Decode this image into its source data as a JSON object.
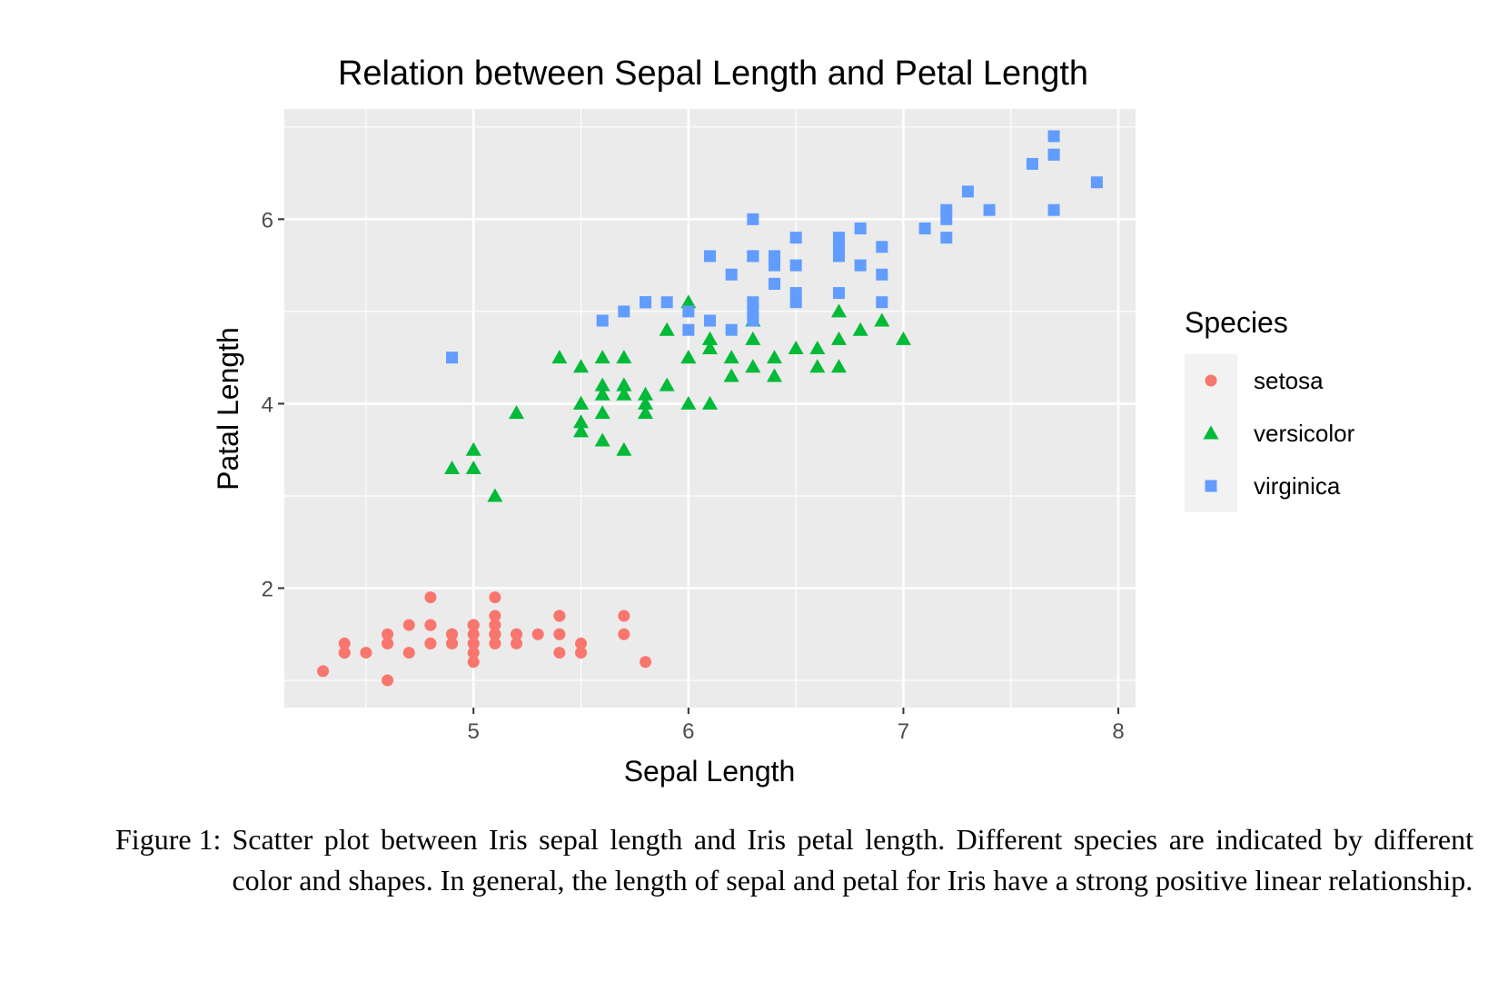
{
  "chart_data": {
    "type": "scatter",
    "title": "Relation between Sepal Length and Petal Length",
    "xlabel": "Sepal Length",
    "ylabel": "Patal Length",
    "xlim": [
      4.12,
      8.08
    ],
    "ylim": [
      0.705,
      7.195
    ],
    "x_ticks": [
      5,
      6,
      7,
      8
    ],
    "y_ticks": [
      2,
      4,
      6
    ],
    "grid": true,
    "legend_title": "Species",
    "legend_position": "right",
    "series": [
      {
        "name": "setosa",
        "color": "#F8766D",
        "marker": "circle",
        "points": [
          [
            5.1,
            1.4
          ],
          [
            4.9,
            1.4
          ],
          [
            4.7,
            1.3
          ],
          [
            4.6,
            1.5
          ],
          [
            5.0,
            1.4
          ],
          [
            5.4,
            1.7
          ],
          [
            4.6,
            1.4
          ],
          [
            5.0,
            1.5
          ],
          [
            4.4,
            1.4
          ],
          [
            4.9,
            1.5
          ],
          [
            5.4,
            1.5
          ],
          [
            4.8,
            1.6
          ],
          [
            4.8,
            1.4
          ],
          [
            4.3,
            1.1
          ],
          [
            5.8,
            1.2
          ],
          [
            5.7,
            1.5
          ],
          [
            5.4,
            1.3
          ],
          [
            5.1,
            1.4
          ],
          [
            5.7,
            1.7
          ],
          [
            5.1,
            1.5
          ],
          [
            5.4,
            1.7
          ],
          [
            5.1,
            1.5
          ],
          [
            4.6,
            1.0
          ],
          [
            5.1,
            1.7
          ],
          [
            4.8,
            1.9
          ],
          [
            5.0,
            1.6
          ],
          [
            5.0,
            1.6
          ],
          [
            5.2,
            1.5
          ],
          [
            5.2,
            1.4
          ],
          [
            4.7,
            1.6
          ],
          [
            4.8,
            1.6
          ],
          [
            5.4,
            1.5
          ],
          [
            5.2,
            1.5
          ],
          [
            5.5,
            1.4
          ],
          [
            4.9,
            1.5
          ],
          [
            5.0,
            1.2
          ],
          [
            5.5,
            1.3
          ],
          [
            4.9,
            1.4
          ],
          [
            4.4,
            1.3
          ],
          [
            5.1,
            1.5
          ],
          [
            5.0,
            1.3
          ],
          [
            4.5,
            1.3
          ],
          [
            4.4,
            1.3
          ],
          [
            5.0,
            1.6
          ],
          [
            5.1,
            1.9
          ],
          [
            4.8,
            1.4
          ],
          [
            5.1,
            1.6
          ],
          [
            4.6,
            1.4
          ],
          [
            5.3,
            1.5
          ],
          [
            5.0,
            1.4
          ]
        ]
      },
      {
        "name": "versicolor",
        "color": "#00BA38",
        "marker": "triangle",
        "points": [
          [
            7.0,
            4.7
          ],
          [
            6.4,
            4.5
          ],
          [
            6.9,
            4.9
          ],
          [
            5.5,
            4.0
          ],
          [
            6.5,
            4.6
          ],
          [
            5.7,
            4.5
          ],
          [
            6.3,
            4.7
          ],
          [
            4.9,
            3.3
          ],
          [
            6.6,
            4.6
          ],
          [
            5.2,
            3.9
          ],
          [
            5.0,
            3.5
          ],
          [
            5.9,
            4.2
          ],
          [
            6.0,
            4.0
          ],
          [
            6.1,
            4.7
          ],
          [
            5.6,
            3.6
          ],
          [
            6.7,
            4.4
          ],
          [
            5.6,
            4.5
          ],
          [
            5.8,
            4.1
          ],
          [
            6.2,
            4.5
          ],
          [
            5.6,
            3.9
          ],
          [
            5.9,
            4.8
          ],
          [
            6.1,
            4.0
          ],
          [
            6.3,
            4.9
          ],
          [
            6.1,
            4.7
          ],
          [
            6.4,
            4.3
          ],
          [
            6.6,
            4.4
          ],
          [
            6.8,
            4.8
          ],
          [
            6.7,
            5.0
          ],
          [
            6.0,
            4.5
          ],
          [
            5.7,
            3.5
          ],
          [
            5.5,
            3.8
          ],
          [
            5.5,
            3.7
          ],
          [
            5.8,
            3.9
          ],
          [
            6.0,
            5.1
          ],
          [
            5.4,
            4.5
          ],
          [
            6.0,
            4.5
          ],
          [
            6.7,
            4.7
          ],
          [
            6.3,
            4.4
          ],
          [
            5.6,
            4.1
          ],
          [
            5.5,
            4.0
          ],
          [
            5.5,
            4.4
          ],
          [
            6.1,
            4.6
          ],
          [
            5.8,
            4.0
          ],
          [
            5.0,
            3.3
          ],
          [
            5.6,
            4.2
          ],
          [
            5.7,
            4.2
          ],
          [
            5.7,
            4.2
          ],
          [
            6.2,
            4.3
          ],
          [
            5.1,
            3.0
          ],
          [
            5.7,
            4.1
          ]
        ]
      },
      {
        "name": "virginica",
        "color": "#619CFF",
        "marker": "square",
        "points": [
          [
            6.3,
            6.0
          ],
          [
            5.8,
            5.1
          ],
          [
            7.1,
            5.9
          ],
          [
            6.3,
            5.6
          ],
          [
            6.5,
            5.8
          ],
          [
            7.6,
            6.6
          ],
          [
            4.9,
            4.5
          ],
          [
            7.3,
            6.3
          ],
          [
            6.7,
            5.8
          ],
          [
            7.2,
            6.1
          ],
          [
            6.5,
            5.1
          ],
          [
            6.4,
            5.3
          ],
          [
            6.8,
            5.5
          ],
          [
            5.7,
            5.0
          ],
          [
            5.8,
            5.1
          ],
          [
            6.4,
            5.3
          ],
          [
            6.5,
            5.5
          ],
          [
            7.7,
            6.7
          ],
          [
            7.7,
            6.9
          ],
          [
            6.0,
            5.0
          ],
          [
            6.9,
            5.7
          ],
          [
            5.6,
            4.9
          ],
          [
            7.7,
            6.7
          ],
          [
            6.3,
            4.9
          ],
          [
            6.7,
            5.7
          ],
          [
            7.2,
            6.0
          ],
          [
            6.2,
            4.8
          ],
          [
            6.1,
            4.9
          ],
          [
            6.4,
            5.6
          ],
          [
            7.2,
            5.8
          ],
          [
            7.4,
            6.1
          ],
          [
            7.9,
            6.4
          ],
          [
            6.4,
            5.6
          ],
          [
            6.3,
            5.1
          ],
          [
            6.1,
            5.6
          ],
          [
            7.7,
            6.1
          ],
          [
            6.3,
            5.6
          ],
          [
            6.4,
            5.5
          ],
          [
            6.0,
            4.8
          ],
          [
            6.9,
            5.4
          ],
          [
            6.7,
            5.6
          ],
          [
            6.9,
            5.1
          ],
          [
            5.8,
            5.1
          ],
          [
            6.8,
            5.9
          ],
          [
            6.7,
            5.7
          ],
          [
            6.7,
            5.2
          ],
          [
            6.3,
            5.0
          ],
          [
            6.5,
            5.2
          ],
          [
            6.2,
            5.4
          ],
          [
            5.9,
            5.1
          ]
        ]
      }
    ]
  },
  "caption": {
    "label": "Figure 1:",
    "text": "Scatter plot between Iris sepal length and Iris petal length. Different species are indicated by different color and shapes. In general, the length of sepal and petal for Iris have a strong positive linear relationship."
  }
}
